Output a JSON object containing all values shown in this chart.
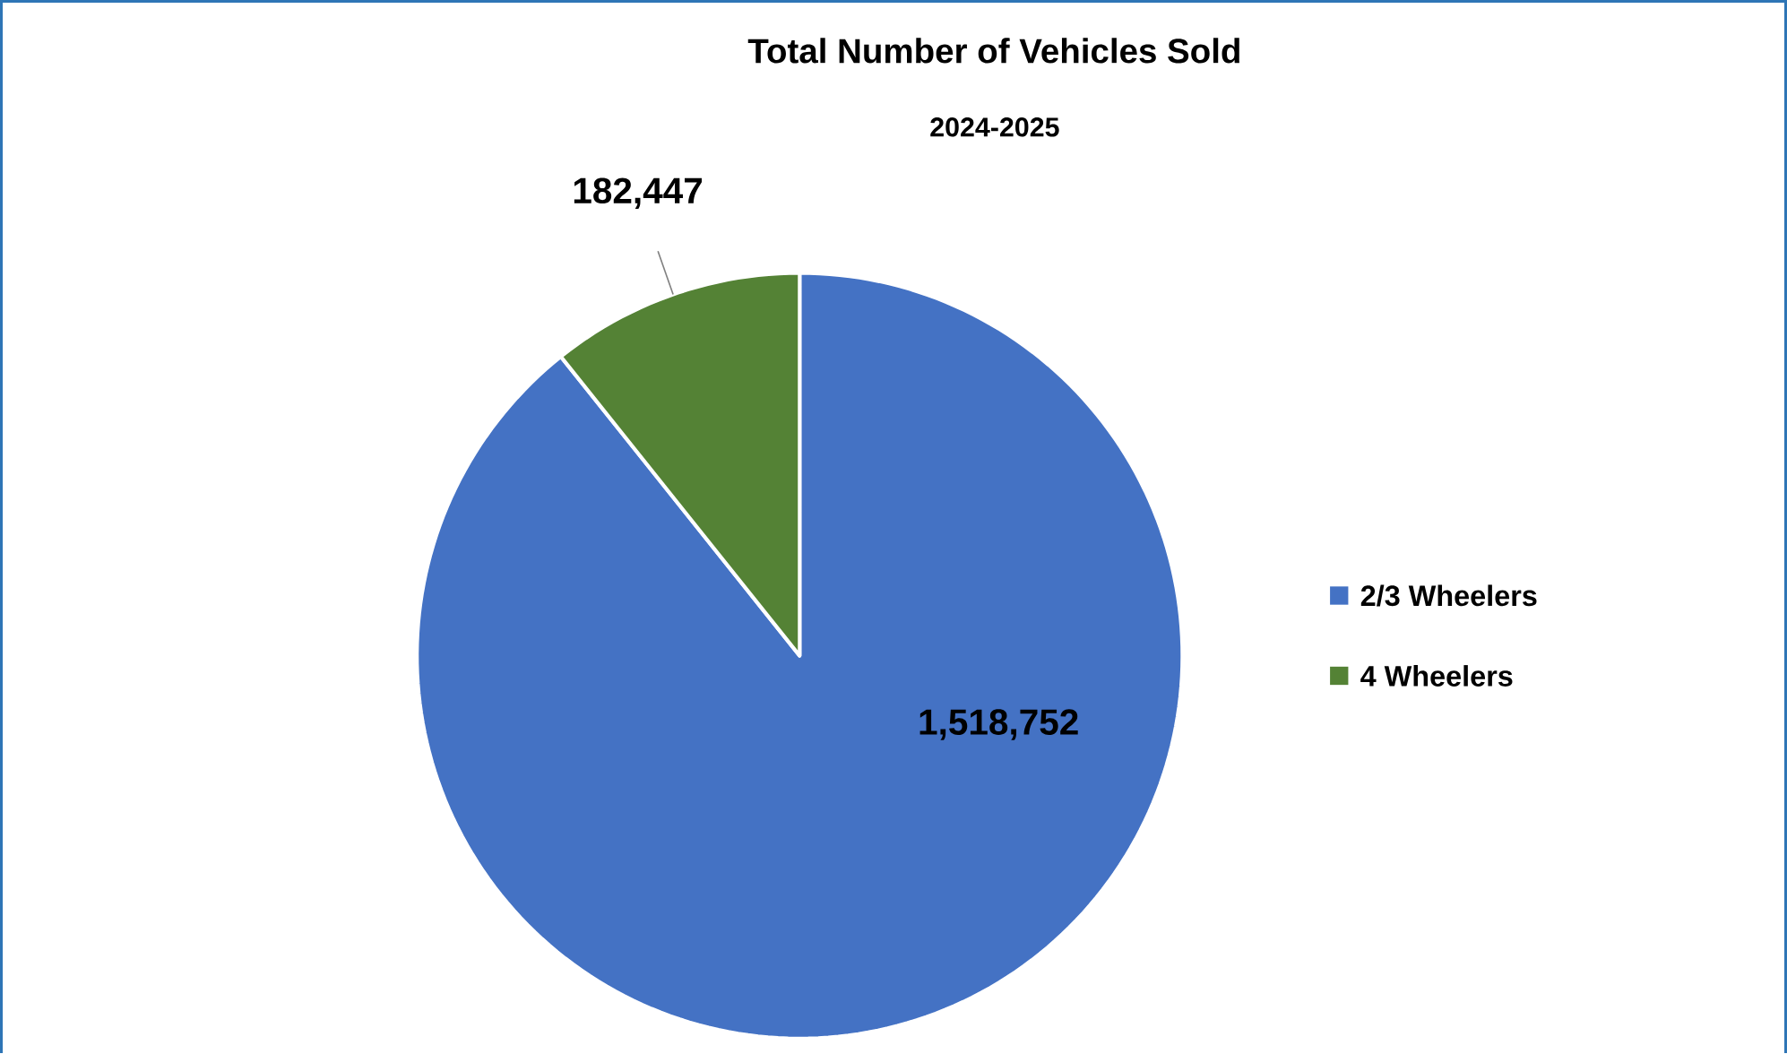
{
  "chart_data": {
    "type": "pie",
    "title": "Total Number of Vehicles Sold",
    "subtitle": "2024-2025",
    "categories": [
      "2/3 Wheelers",
      "4 Wheelers"
    ],
    "values": [
      1518752,
      182447
    ],
    "value_labels": [
      "1,518,752",
      "182,447"
    ],
    "colors": [
      "#4472c4",
      "#548235"
    ],
    "legend": "right"
  }
}
